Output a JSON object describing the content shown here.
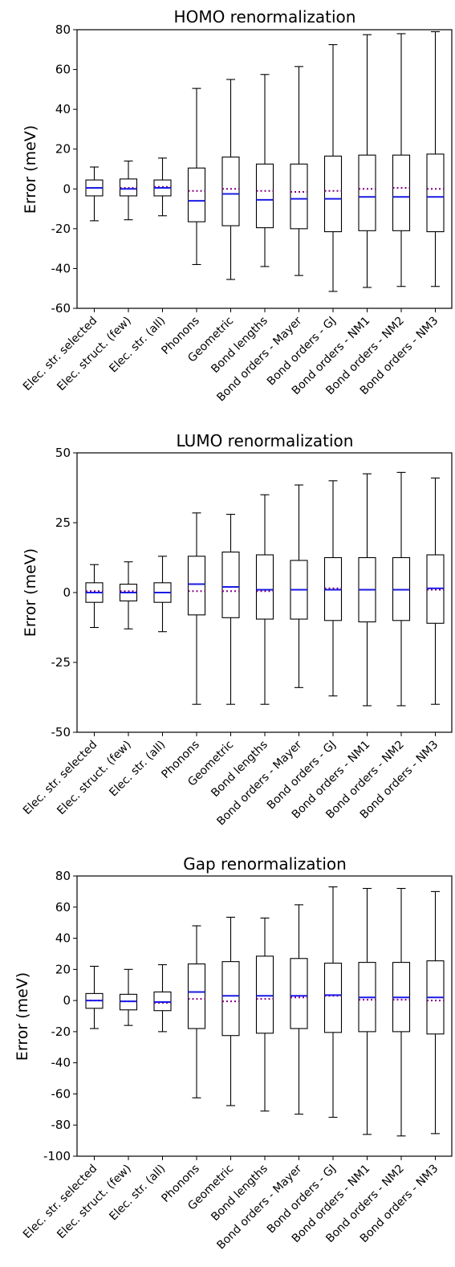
{
  "chart_data": [
    {
      "type": "box",
      "title": "HOMO renormalization",
      "ylabel": "Error (meV)",
      "ylim": [
        -60,
        80
      ],
      "yticks": [
        -60,
        -40,
        -20,
        0,
        20,
        40,
        60,
        80
      ],
      "grid": false,
      "categories": [
        "Elec. str. selected",
        "Elec. struct. (few)",
        "Elec. str. (all)",
        "Phonons",
        "Geometric",
        "Bond lengths",
        "Bond orders - Mayer",
        "Bond orders - GJ",
        "Bond orders - NM1",
        "Bond orders - NM2",
        "Bond orders - NM3"
      ],
      "boxes": [
        {
          "whisker_low": -16,
          "q1": -3.5,
          "median": 0.5,
          "mean": 0.5,
          "q3": 4.5,
          "whisker_high": 11
        },
        {
          "whisker_low": -15.5,
          "q1": -3.5,
          "median": 0,
          "mean": 0.5,
          "q3": 5,
          "whisker_high": 14
        },
        {
          "whisker_low": -13.5,
          "q1": -3.5,
          "median": 0.5,
          "mean": 1,
          "q3": 4.5,
          "whisker_high": 15.5
        },
        {
          "whisker_low": -38,
          "q1": -16.5,
          "median": -6,
          "mean": -1,
          "q3": 10.5,
          "whisker_high": 50.5
        },
        {
          "whisker_low": -45.5,
          "q1": -18.5,
          "median": -2.5,
          "mean": 0,
          "q3": 16,
          "whisker_high": 55
        },
        {
          "whisker_low": -39,
          "q1": -19.5,
          "median": -5.5,
          "mean": -1,
          "q3": 12.5,
          "whisker_high": 57.5
        },
        {
          "whisker_low": -43.5,
          "q1": -20,
          "median": -5,
          "mean": -1.5,
          "q3": 12.5,
          "whisker_high": 61.5
        },
        {
          "whisker_low": -51.5,
          "q1": -21.5,
          "median": -5,
          "mean": -1,
          "q3": 16.5,
          "whisker_high": 72.5
        },
        {
          "whisker_low": -49.5,
          "q1": -21,
          "median": -4,
          "mean": 0,
          "q3": 17,
          "whisker_high": 77.5
        },
        {
          "whisker_low": -49,
          "q1": -21,
          "median": -4,
          "mean": 0.5,
          "q3": 17,
          "whisker_high": 78
        },
        {
          "whisker_low": -49,
          "q1": -21.5,
          "median": -4,
          "mean": 0,
          "q3": 17.5,
          "whisker_high": 79
        }
      ]
    },
    {
      "type": "box",
      "title": "LUMO renormalization",
      "ylabel": "Error (meV)",
      "ylim": [
        -50,
        50
      ],
      "yticks": [
        -50,
        -25,
        0,
        25,
        50
      ],
      "grid": false,
      "categories": [
        "Elec. str. selected",
        "Elec. struct. (few)",
        "Elec. str. (all)",
        "Phonons",
        "Geometric",
        "Bond lengths",
        "Bond orders - Mayer",
        "Bond orders - GJ",
        "Bond orders - NM1",
        "Bond orders - NM2",
        "Bond orders - NM3"
      ],
      "boxes": [
        {
          "whisker_low": -12.5,
          "q1": -3.5,
          "median": 0,
          "mean": 0.5,
          "q3": 3.5,
          "whisker_high": 10
        },
        {
          "whisker_low": -13,
          "q1": -3,
          "median": 0,
          "mean": 0.5,
          "q3": 3,
          "whisker_high": 11
        },
        {
          "whisker_low": -14,
          "q1": -3.5,
          "median": 0,
          "mean": 0,
          "q3": 3.5,
          "whisker_high": 13
        },
        {
          "whisker_low": -40,
          "q1": -8,
          "median": 3,
          "mean": 0.5,
          "q3": 13,
          "whisker_high": 28.5
        },
        {
          "whisker_low": -40,
          "q1": -9,
          "median": 2,
          "mean": 0.5,
          "q3": 14.5,
          "whisker_high": 28
        },
        {
          "whisker_low": -40,
          "q1": -9.5,
          "median": 1,
          "mean": 0.5,
          "q3": 13.5,
          "whisker_high": 35
        },
        {
          "whisker_low": -34,
          "q1": -9.5,
          "median": 1,
          "mean": 1,
          "q3": 11.5,
          "whisker_high": 38.5
        },
        {
          "whisker_low": -37,
          "q1": -10,
          "median": 1,
          "mean": 1.5,
          "q3": 12.5,
          "whisker_high": 40
        },
        {
          "whisker_low": -40.5,
          "q1": -10.5,
          "median": 1,
          "mean": 1,
          "q3": 12.5,
          "whisker_high": 42.5
        },
        {
          "whisker_low": -40.5,
          "q1": -10,
          "median": 1,
          "mean": 1,
          "q3": 12.5,
          "whisker_high": 43
        },
        {
          "whisker_low": -40,
          "q1": -11,
          "median": 1.5,
          "mean": 1,
          "q3": 13.5,
          "whisker_high": 41
        }
      ]
    },
    {
      "type": "box",
      "title": "Gap renormalization",
      "ylabel": "Error (meV)",
      "ylim": [
        -100,
        80
      ],
      "yticks": [
        -100,
        -80,
        -60,
        -40,
        -20,
        0,
        20,
        40,
        60,
        80
      ],
      "grid": false,
      "categories": [
        "Elec. str. selected",
        "Elec. struct. (few)",
        "Elec. str. (all)",
        "Phonons",
        "Geometric",
        "Bond lengths",
        "Bond orders - Mayer",
        "Bond orders - GJ",
        "Bond orders - NM1",
        "Bond orders - NM2",
        "Bond orders - NM3"
      ],
      "boxes": [
        {
          "whisker_low": -18,
          "q1": -5,
          "median": 0,
          "mean": 0,
          "q3": 4.5,
          "whisker_high": 22
        },
        {
          "whisker_low": -16,
          "q1": -6,
          "median": -0.5,
          "mean": -0.5,
          "q3": 4,
          "whisker_high": 20
        },
        {
          "whisker_low": -20,
          "q1": -6.5,
          "median": -1,
          "mean": -1.5,
          "q3": 5.5,
          "whisker_high": 23
        },
        {
          "whisker_low": -62.5,
          "q1": -18,
          "median": 5.5,
          "mean": 1,
          "q3": 23.5,
          "whisker_high": 48
        },
        {
          "whisker_low": -67.5,
          "q1": -22.5,
          "median": 3,
          "mean": -0.5,
          "q3": 25,
          "whisker_high": 53.5
        },
        {
          "whisker_low": -71,
          "q1": -21,
          "median": 3,
          "mean": 1,
          "q3": 28.5,
          "whisker_high": 53
        },
        {
          "whisker_low": -73,
          "q1": -18,
          "median": 3,
          "mean": 2,
          "q3": 27,
          "whisker_high": 61.5
        },
        {
          "whisker_low": -75,
          "q1": -20.5,
          "median": 3.5,
          "mean": 3,
          "q3": 24,
          "whisker_high": 73
        },
        {
          "whisker_low": -86,
          "q1": -20,
          "median": 2,
          "mean": 0.5,
          "q3": 24.5,
          "whisker_high": 72
        },
        {
          "whisker_low": -87,
          "q1": -20,
          "median": 2,
          "mean": 0.5,
          "q3": 24.5,
          "whisker_high": 72
        },
        {
          "whisker_low": -85.5,
          "q1": -21.5,
          "median": 2,
          "mean": 0,
          "q3": 25.5,
          "whisker_high": 70
        }
      ]
    }
  ]
}
